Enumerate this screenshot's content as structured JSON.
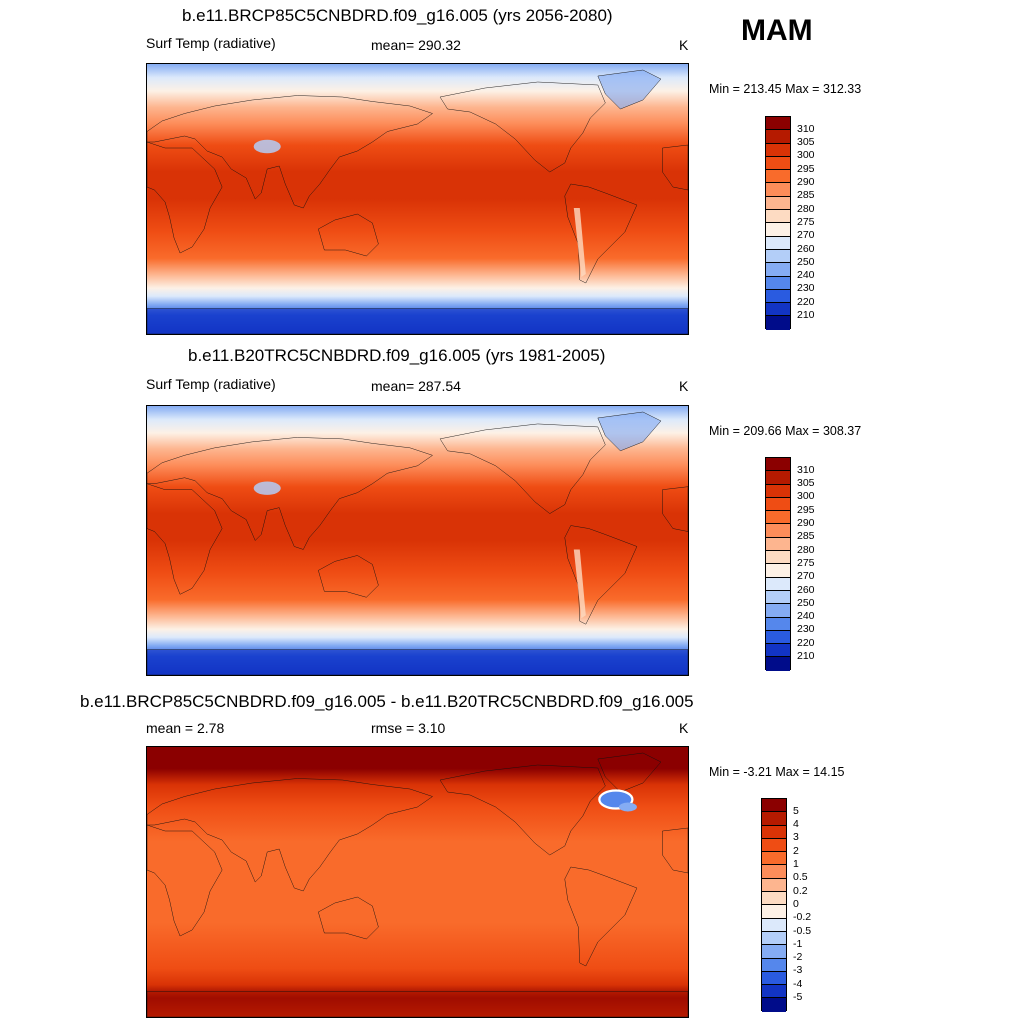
{
  "season": "MAM",
  "panels": [
    {
      "title": "b.e11.BRCP85C5CNBDRD.f09_g16.005 (yrs 2056-2080)",
      "left_label": "Surf Temp (radiative)",
      "center_label": "mean= 290.32",
      "units": "K",
      "minmax": "Min = 213.45 Max = 312.33"
    },
    {
      "title": "b.e11.B20TRC5CNBDRD.f09_g16.005 (yrs 1981-2005)",
      "left_label": "Surf Temp (radiative)",
      "center_label": "mean= 287.54",
      "units": "K",
      "minmax": "Min = 209.66 Max = 308.37"
    },
    {
      "title": "b.e11.BRCP85C5CNBDRD.f09_g16.005 - b.e11.B20TRC5CNBDRD.f09_g16.005",
      "left_label": "mean =   2.78",
      "center_label": "rmse =   3.10",
      "units": "K",
      "minmax": "Min =  -3.21 Max =  14.15"
    }
  ],
  "chart_data": [
    {
      "type": "heatmap",
      "title": "b.e11.BRCP85C5CNBDRD.f09_g16.005 (yrs 2056-2080)",
      "variable": "Surf Temp (radiative)",
      "units": "K",
      "mean": 290.32,
      "min": 213.45,
      "max": 312.33,
      "projection": "cylindrical equidistant, global, centered 180",
      "colorbar_levels": [
        "310",
        "305",
        "300",
        "295",
        "290",
        "285",
        "280",
        "275",
        "270",
        "260",
        "250",
        "240",
        "230",
        "220",
        "210"
      ],
      "colorbar_colors": [
        "#8b0000",
        "#b51a00",
        "#d93306",
        "#ef4d14",
        "#f96b2b",
        "#fd8d5a",
        "#fdb58f",
        "#fddbc2",
        "#fdf1e6",
        "#dce9fb",
        "#b3cef8",
        "#85acf3",
        "#5587ec",
        "#2a5be0",
        "#1234c4",
        "#000c8a"
      ]
    },
    {
      "type": "heatmap",
      "title": "b.e11.B20TRC5CNBDRD.f09_g16.005 (yrs 1981-2005)",
      "variable": "Surf Temp (radiative)",
      "units": "K",
      "mean": 287.54,
      "min": 209.66,
      "max": 308.37,
      "projection": "cylindrical equidistant, global, centered 180",
      "colorbar_levels": [
        "310",
        "305",
        "300",
        "295",
        "290",
        "285",
        "280",
        "275",
        "270",
        "260",
        "250",
        "240",
        "230",
        "220",
        "210"
      ],
      "colorbar_colors": [
        "#8b0000",
        "#b51a00",
        "#d93306",
        "#ef4d14",
        "#f96b2b",
        "#fd8d5a",
        "#fdb58f",
        "#fddbc2",
        "#fdf1e6",
        "#dce9fb",
        "#b3cef8",
        "#85acf3",
        "#5587ec",
        "#2a5be0",
        "#1234c4",
        "#000c8a"
      ]
    },
    {
      "type": "heatmap",
      "title": "b.e11.BRCP85C5CNBDRD.f09_g16.005 - b.e11.B20TRC5CNBDRD.f09_g16.005",
      "variable": "difference",
      "units": "K",
      "mean": 2.78,
      "rmse": 3.1,
      "min": -3.21,
      "max": 14.15,
      "projection": "cylindrical equidistant, global, centered 180",
      "colorbar_levels": [
        "5",
        "4",
        "3",
        "2",
        "1",
        "0.5",
        "0.2",
        "0",
        "-0.2",
        "-0.5",
        "-1",
        "-2",
        "-3",
        "-4",
        "-5"
      ],
      "colorbar_colors": [
        "#8b0000",
        "#b51a00",
        "#d93306",
        "#ef4d14",
        "#f96b2b",
        "#fd8d5a",
        "#fdb58f",
        "#fddbc2",
        "#fdf1e6",
        "#dce9fb",
        "#b3cef8",
        "#85acf3",
        "#5587ec",
        "#2a5be0",
        "#1234c4",
        "#000c8a"
      ]
    }
  ]
}
